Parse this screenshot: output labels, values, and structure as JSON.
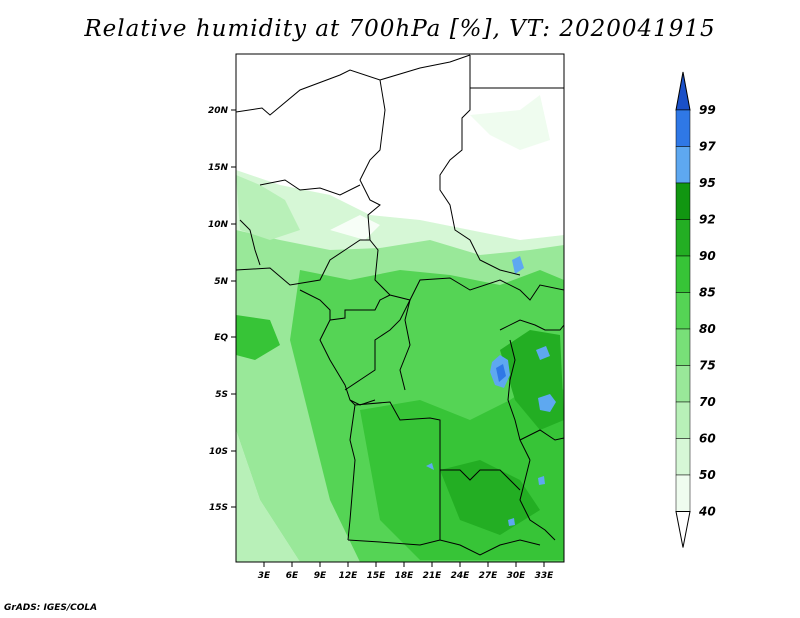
{
  "title": "Relative humidity at 700hPa [%], VT: 2020041915",
  "credit": "GrADS: IGES/COLA",
  "map": {
    "x_ticks": [
      "3E",
      "6E",
      "9E",
      "12E",
      "15E",
      "18E",
      "21E",
      "24E",
      "27E",
      "30E",
      "33E"
    ],
    "y_ticks": [
      "20N",
      "15N",
      "10N",
      "5N",
      "EQ",
      "5S",
      "10S",
      "15S"
    ]
  },
  "colorbar": {
    "levels": [
      "99",
      "97",
      "95",
      "92",
      "90",
      "85",
      "80",
      "75",
      "70",
      "60",
      "50",
      "40"
    ],
    "colors": [
      "#1a50c8",
      "#2f78e6",
      "#5ea8f0",
      "#119611",
      "#23ae23",
      "#37c437",
      "#55d455",
      "#78e078",
      "#99e899",
      "#b8f0b8",
      "#d6f7d6",
      "#effcef"
    ]
  },
  "field_colors": {
    "land_dry": "#ffffff",
    "very_low": "#effcef",
    "low": "#d6f7d6",
    "mid": "#99e899",
    "high": "#55d455",
    "higher": "#37c437",
    "very_high": "#23ae23",
    "saturated_light": "#5ea8f0",
    "saturated": "#2f78e6"
  }
}
